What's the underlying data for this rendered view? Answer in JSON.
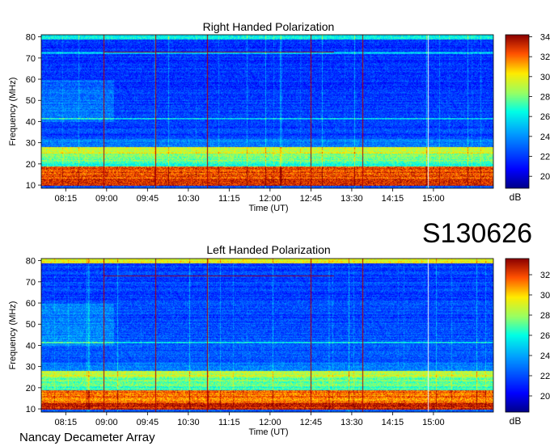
{
  "figure": {
    "code": "S130626",
    "observatory": "Nancay Decameter Array"
  },
  "chart_data": [
    {
      "type": "heatmap",
      "title": "Right Handed Polarization",
      "xlabel": "Time (UT)",
      "ylabel": "Frequency (MHz)",
      "x_ticks": [
        "08:15",
        "09:00",
        "09:45",
        "10:30",
        "11:15",
        "12:00",
        "12:45",
        "13:30",
        "14:15",
        "15:00"
      ],
      "x_tick_hours": [
        8.25,
        9.0,
        9.75,
        10.5,
        11.25,
        12.0,
        12.75,
        13.5,
        14.25,
        15.0
      ],
      "xlim_hours": [
        7.8,
        16.1
      ],
      "y_ticks": [
        10,
        20,
        30,
        40,
        50,
        60,
        70,
        80
      ],
      "ylim": [
        8.5,
        81
      ],
      "colorbar": {
        "label": "dB",
        "ticks": [
          20,
          22,
          24,
          26,
          28,
          30,
          32,
          34
        ],
        "range": [
          18.8,
          34.2
        ]
      },
      "red_markers_hours": [
        8.95,
        9.9,
        10.85,
        12.75,
        13.7
      ],
      "white_markers_hours": [
        14.9
      ],
      "bands_mhz": [
        {
          "from": 10,
          "to": 13,
          "level": 33
        },
        {
          "from": 13,
          "to": 19,
          "level": 32.5
        },
        {
          "from": 19,
          "to": 21,
          "level": 27
        },
        {
          "from": 21,
          "to": 25,
          "level": 28
        },
        {
          "from": 25,
          "to": 28,
          "level": 29.5
        },
        {
          "from": 28,
          "to": 32,
          "level": 23.5
        },
        {
          "from": 41,
          "to": 42,
          "level": 25.5
        },
        {
          "from": 72,
          "to": 73,
          "level": 25
        },
        {
          "from": 79,
          "to": 81,
          "level": 26
        }
      ]
    },
    {
      "type": "heatmap",
      "title": "Left Handed Polarization",
      "xlabel": "Time (UT)",
      "ylabel": "Frequency (MHz)",
      "x_ticks": [
        "08:15",
        "09:00",
        "09:45",
        "10:30",
        "11:15",
        "12:00",
        "12:45",
        "13:30",
        "14:15",
        "15:00"
      ],
      "x_tick_hours": [
        8.25,
        9.0,
        9.75,
        10.5,
        11.25,
        12.0,
        12.75,
        13.5,
        14.25,
        15.0
      ],
      "xlim_hours": [
        7.8,
        16.1
      ],
      "y_ticks": [
        10,
        20,
        30,
        40,
        50,
        60,
        70,
        80
      ],
      "ylim": [
        8.5,
        81
      ],
      "colorbar": {
        "label": "dB",
        "ticks": [
          20,
          22,
          24,
          26,
          28,
          30,
          32
        ],
        "range": [
          18.4,
          33.6
        ]
      },
      "red_markers_hours": [
        8.95,
        9.9,
        10.85,
        12.75,
        13.7
      ],
      "white_markers_hours": [
        14.9
      ],
      "bands_mhz": [
        {
          "from": 10,
          "to": 13,
          "level": 32.5
        },
        {
          "from": 13,
          "to": 19,
          "level": 31.5
        },
        {
          "from": 19,
          "to": 21,
          "level": 26.5
        },
        {
          "from": 21,
          "to": 25,
          "level": 27.5
        },
        {
          "from": 25,
          "to": 28,
          "level": 28.5
        },
        {
          "from": 28,
          "to": 32,
          "level": 23
        },
        {
          "from": 41,
          "to": 42,
          "level": 25.5
        },
        {
          "from": 79,
          "to": 81,
          "level": 29
        }
      ]
    }
  ]
}
